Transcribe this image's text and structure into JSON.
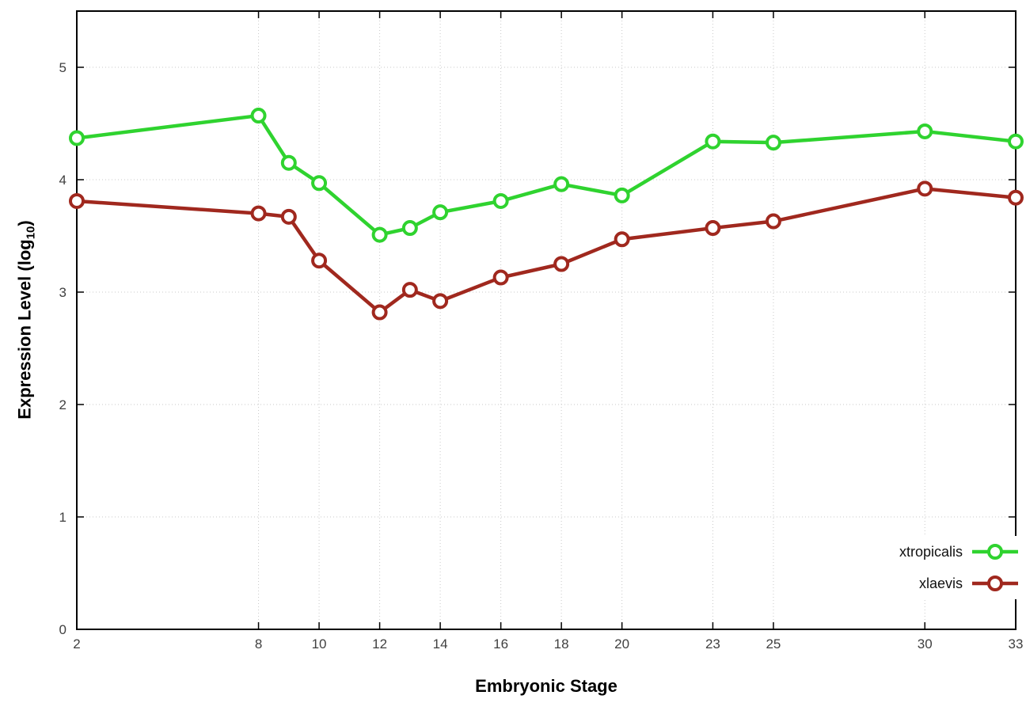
{
  "chart_data": {
    "type": "line",
    "title": "",
    "xlabel": "Embryonic Stage",
    "ylabel": {
      "prefix": "Expression Level (log",
      "sub": "10",
      "suffix": ")"
    },
    "x": [
      2,
      8,
      9,
      10,
      12,
      13,
      14,
      16,
      18,
      20,
      23,
      25,
      30,
      33
    ],
    "series": [
      {
        "name": "xtropicalis",
        "color": "#2fd32f",
        "values": [
          4.37,
          4.57,
          4.15,
          3.97,
          3.51,
          3.57,
          3.71,
          3.81,
          3.96,
          3.86,
          4.34,
          4.33,
          4.43,
          4.34
        ]
      },
      {
        "name": "xlaevis",
        "color": "#a0281e",
        "values": [
          3.81,
          3.7,
          3.67,
          3.28,
          2.82,
          3.02,
          2.92,
          3.13,
          3.25,
          3.47,
          3.57,
          3.63,
          3.92,
          3.84
        ]
      }
    ],
    "xticks": [
      2,
      8,
      10,
      12,
      14,
      16,
      18,
      20,
      23,
      25,
      30,
      33
    ],
    "yticks": [
      0,
      1,
      2,
      3,
      4,
      5
    ],
    "xlim": [
      2,
      33
    ],
    "ylim": [
      0,
      5.5
    ],
    "grid": "dotted",
    "legend_position": "bottom-right",
    "marker": "open-circle",
    "background": "#ffffff",
    "grid_color": "#c9c9c9",
    "axis_color": "#000000",
    "tick_label_color": "#404040"
  }
}
